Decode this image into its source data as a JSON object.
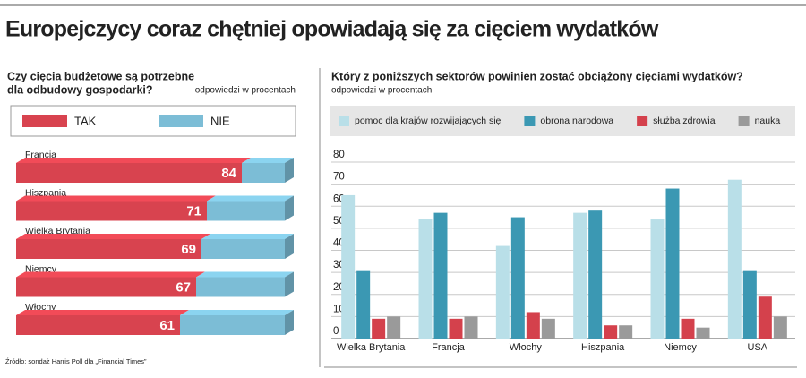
{
  "title": "Europejczycy coraz chętniej opowiadają się za cięciem wydatków",
  "source": "Źródło: sondaż Harris Poll dla „Financial Times”",
  "chart_data": [
    {
      "type": "stacked-hbar",
      "title": [
        "Czy cięcia budżetowe są potrzebne",
        "dla odbudowy gospodarki?"
      ],
      "subtitle": "odpowiedzi w procentach",
      "categories": [
        "Francja",
        "Hiszpania",
        "Wielka Brytania",
        "Niemcy",
        "Włochy"
      ],
      "xlim": [
        0,
        100
      ],
      "series": [
        {
          "name": "TAK",
          "color": "#d8434f",
          "values": [
            84,
            71,
            69,
            67,
            61
          ],
          "data_labels": true
        },
        {
          "name": "NIE",
          "color": "#7cbdd6",
          "values": [
            16,
            29,
            31,
            33,
            39
          ]
        }
      ]
    },
    {
      "type": "grouped-bar",
      "title": "Który z poniższych sektorów powinien zostać obciążony cięciami wydatków?",
      "subtitle": "odpowiedzi w procentach",
      "categories": [
        "Wielka Brytania",
        "Francja",
        "Włochy",
        "Hiszpania",
        "Niemcy",
        "USA"
      ],
      "ylim": [
        0,
        80
      ],
      "yticks": [
        0,
        10,
        20,
        30,
        40,
        50,
        60,
        70,
        80
      ],
      "grid": true,
      "series": [
        {
          "name": "pomoc dla krajów rozwijających się",
          "color": "#b9dfe8",
          "values": [
            65,
            54,
            42,
            57,
            54,
            72
          ]
        },
        {
          "name": "obrona narodowa",
          "color": "#3b98b3",
          "values": [
            31,
            57,
            55,
            58,
            68,
            31
          ]
        },
        {
          "name": "służba zdrowia",
          "color": "#d4414c",
          "values": [
            9,
            9,
            12,
            6,
            9,
            19
          ]
        },
        {
          "name": "nauka",
          "color": "#9a9a9a",
          "values": [
            10,
            10,
            9,
            6,
            5,
            10
          ]
        }
      ]
    }
  ]
}
